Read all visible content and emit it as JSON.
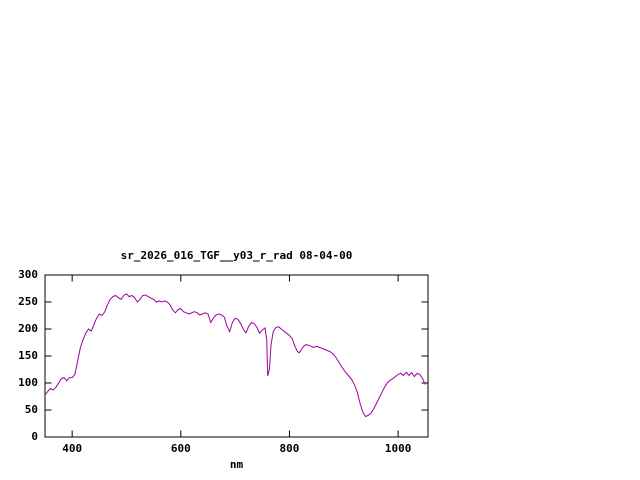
{
  "window": {
    "background": "#ffffff"
  },
  "chart_data": {
    "type": "line",
    "title": "sr_2026_016_TGF__y03_r_rad 08-04-00",
    "xlabel": "nm",
    "ylabel": "",
    "xlim": [
      350,
      1055
    ],
    "ylim": [
      0,
      300
    ],
    "xticks": [
      400,
      600,
      800,
      1000
    ],
    "yticks": [
      0,
      50,
      100,
      150,
      200,
      250,
      300
    ],
    "grid": false,
    "legend_position": "none",
    "line_color": "#a000a0",
    "border_color": "#000000",
    "series": [
      {
        "name": "sr_2026_016_TGF__y03_r_rad",
        "points": [
          [
            350,
            78
          ],
          [
            355,
            84
          ],
          [
            360,
            90
          ],
          [
            365,
            87
          ],
          [
            370,
            92
          ],
          [
            375,
            100
          ],
          [
            380,
            108
          ],
          [
            385,
            110
          ],
          [
            390,
            104
          ],
          [
            395,
            110
          ],
          [
            400,
            110
          ],
          [
            405,
            116
          ],
          [
            410,
            140
          ],
          [
            415,
            165
          ],
          [
            420,
            180
          ],
          [
            425,
            192
          ],
          [
            430,
            200
          ],
          [
            435,
            196
          ],
          [
            440,
            208
          ],
          [
            445,
            220
          ],
          [
            450,
            228
          ],
          [
            455,
            225
          ],
          [
            460,
            232
          ],
          [
            465,
            245
          ],
          [
            470,
            255
          ],
          [
            475,
            260
          ],
          [
            480,
            262
          ],
          [
            485,
            258
          ],
          [
            490,
            255
          ],
          [
            495,
            262
          ],
          [
            500,
            265
          ],
          [
            505,
            260
          ],
          [
            510,
            262
          ],
          [
            515,
            258
          ],
          [
            520,
            250
          ],
          [
            525,
            255
          ],
          [
            530,
            262
          ],
          [
            535,
            263
          ],
          [
            540,
            260
          ],
          [
            545,
            257
          ],
          [
            550,
            255
          ],
          [
            555,
            250
          ],
          [
            560,
            252
          ],
          [
            565,
            250
          ],
          [
            570,
            252
          ],
          [
            575,
            250
          ],
          [
            580,
            245
          ],
          [
            585,
            235
          ],
          [
            590,
            230
          ],
          [
            595,
            236
          ],
          [
            600,
            238
          ],
          [
            605,
            232
          ],
          [
            610,
            230
          ],
          [
            615,
            228
          ],
          [
            620,
            230
          ],
          [
            625,
            232
          ],
          [
            630,
            230
          ],
          [
            635,
            226
          ],
          [
            640,
            228
          ],
          [
            645,
            230
          ],
          [
            650,
            228
          ],
          [
            655,
            212
          ],
          [
            660,
            220
          ],
          [
            665,
            226
          ],
          [
            670,
            228
          ],
          [
            675,
            226
          ],
          [
            680,
            222
          ],
          [
            685,
            205
          ],
          [
            690,
            195
          ],
          [
            695,
            212
          ],
          [
            700,
            220
          ],
          [
            705,
            218
          ],
          [
            710,
            210
          ],
          [
            715,
            200
          ],
          [
            720,
            193
          ],
          [
            725,
            205
          ],
          [
            730,
            212
          ],
          [
            735,
            210
          ],
          [
            740,
            203
          ],
          [
            745,
            192
          ],
          [
            750,
            198
          ],
          [
            755,
            202
          ],
          [
            758,
            180
          ],
          [
            760,
            113
          ],
          [
            763,
            125
          ],
          [
            766,
            170
          ],
          [
            770,
            195
          ],
          [
            775,
            203
          ],
          [
            780,
            204
          ],
          [
            785,
            200
          ],
          [
            790,
            196
          ],
          [
            795,
            192
          ],
          [
            800,
            188
          ],
          [
            805,
            182
          ],
          [
            810,
            168
          ],
          [
            815,
            158
          ],
          [
            818,
            156
          ],
          [
            822,
            162
          ],
          [
            826,
            168
          ],
          [
            830,
            171
          ],
          [
            835,
            170
          ],
          [
            840,
            168
          ],
          [
            845,
            166
          ],
          [
            850,
            168
          ],
          [
            855,
            166
          ],
          [
            860,
            164
          ],
          [
            865,
            162
          ],
          [
            870,
            160
          ],
          [
            875,
            158
          ],
          [
            880,
            154
          ],
          [
            885,
            148
          ],
          [
            890,
            140
          ],
          [
            895,
            132
          ],
          [
            900,
            124
          ],
          [
            905,
            118
          ],
          [
            910,
            112
          ],
          [
            915,
            106
          ],
          [
            920,
            96
          ],
          [
            925,
            82
          ],
          [
            930,
            62
          ],
          [
            935,
            46
          ],
          [
            940,
            38
          ],
          [
            945,
            40
          ],
          [
            950,
            44
          ],
          [
            955,
            52
          ],
          [
            960,
            62
          ],
          [
            965,
            72
          ],
          [
            970,
            82
          ],
          [
            975,
            92
          ],
          [
            980,
            100
          ],
          [
            985,
            105
          ],
          [
            990,
            108
          ],
          [
            995,
            112
          ],
          [
            1000,
            116
          ],
          [
            1005,
            118
          ],
          [
            1010,
            114
          ],
          [
            1015,
            120
          ],
          [
            1020,
            114
          ],
          [
            1025,
            119
          ],
          [
            1030,
            112
          ],
          [
            1035,
            118
          ],
          [
            1040,
            116
          ],
          [
            1045,
            108
          ],
          [
            1050,
            97
          ]
        ]
      }
    ]
  }
}
